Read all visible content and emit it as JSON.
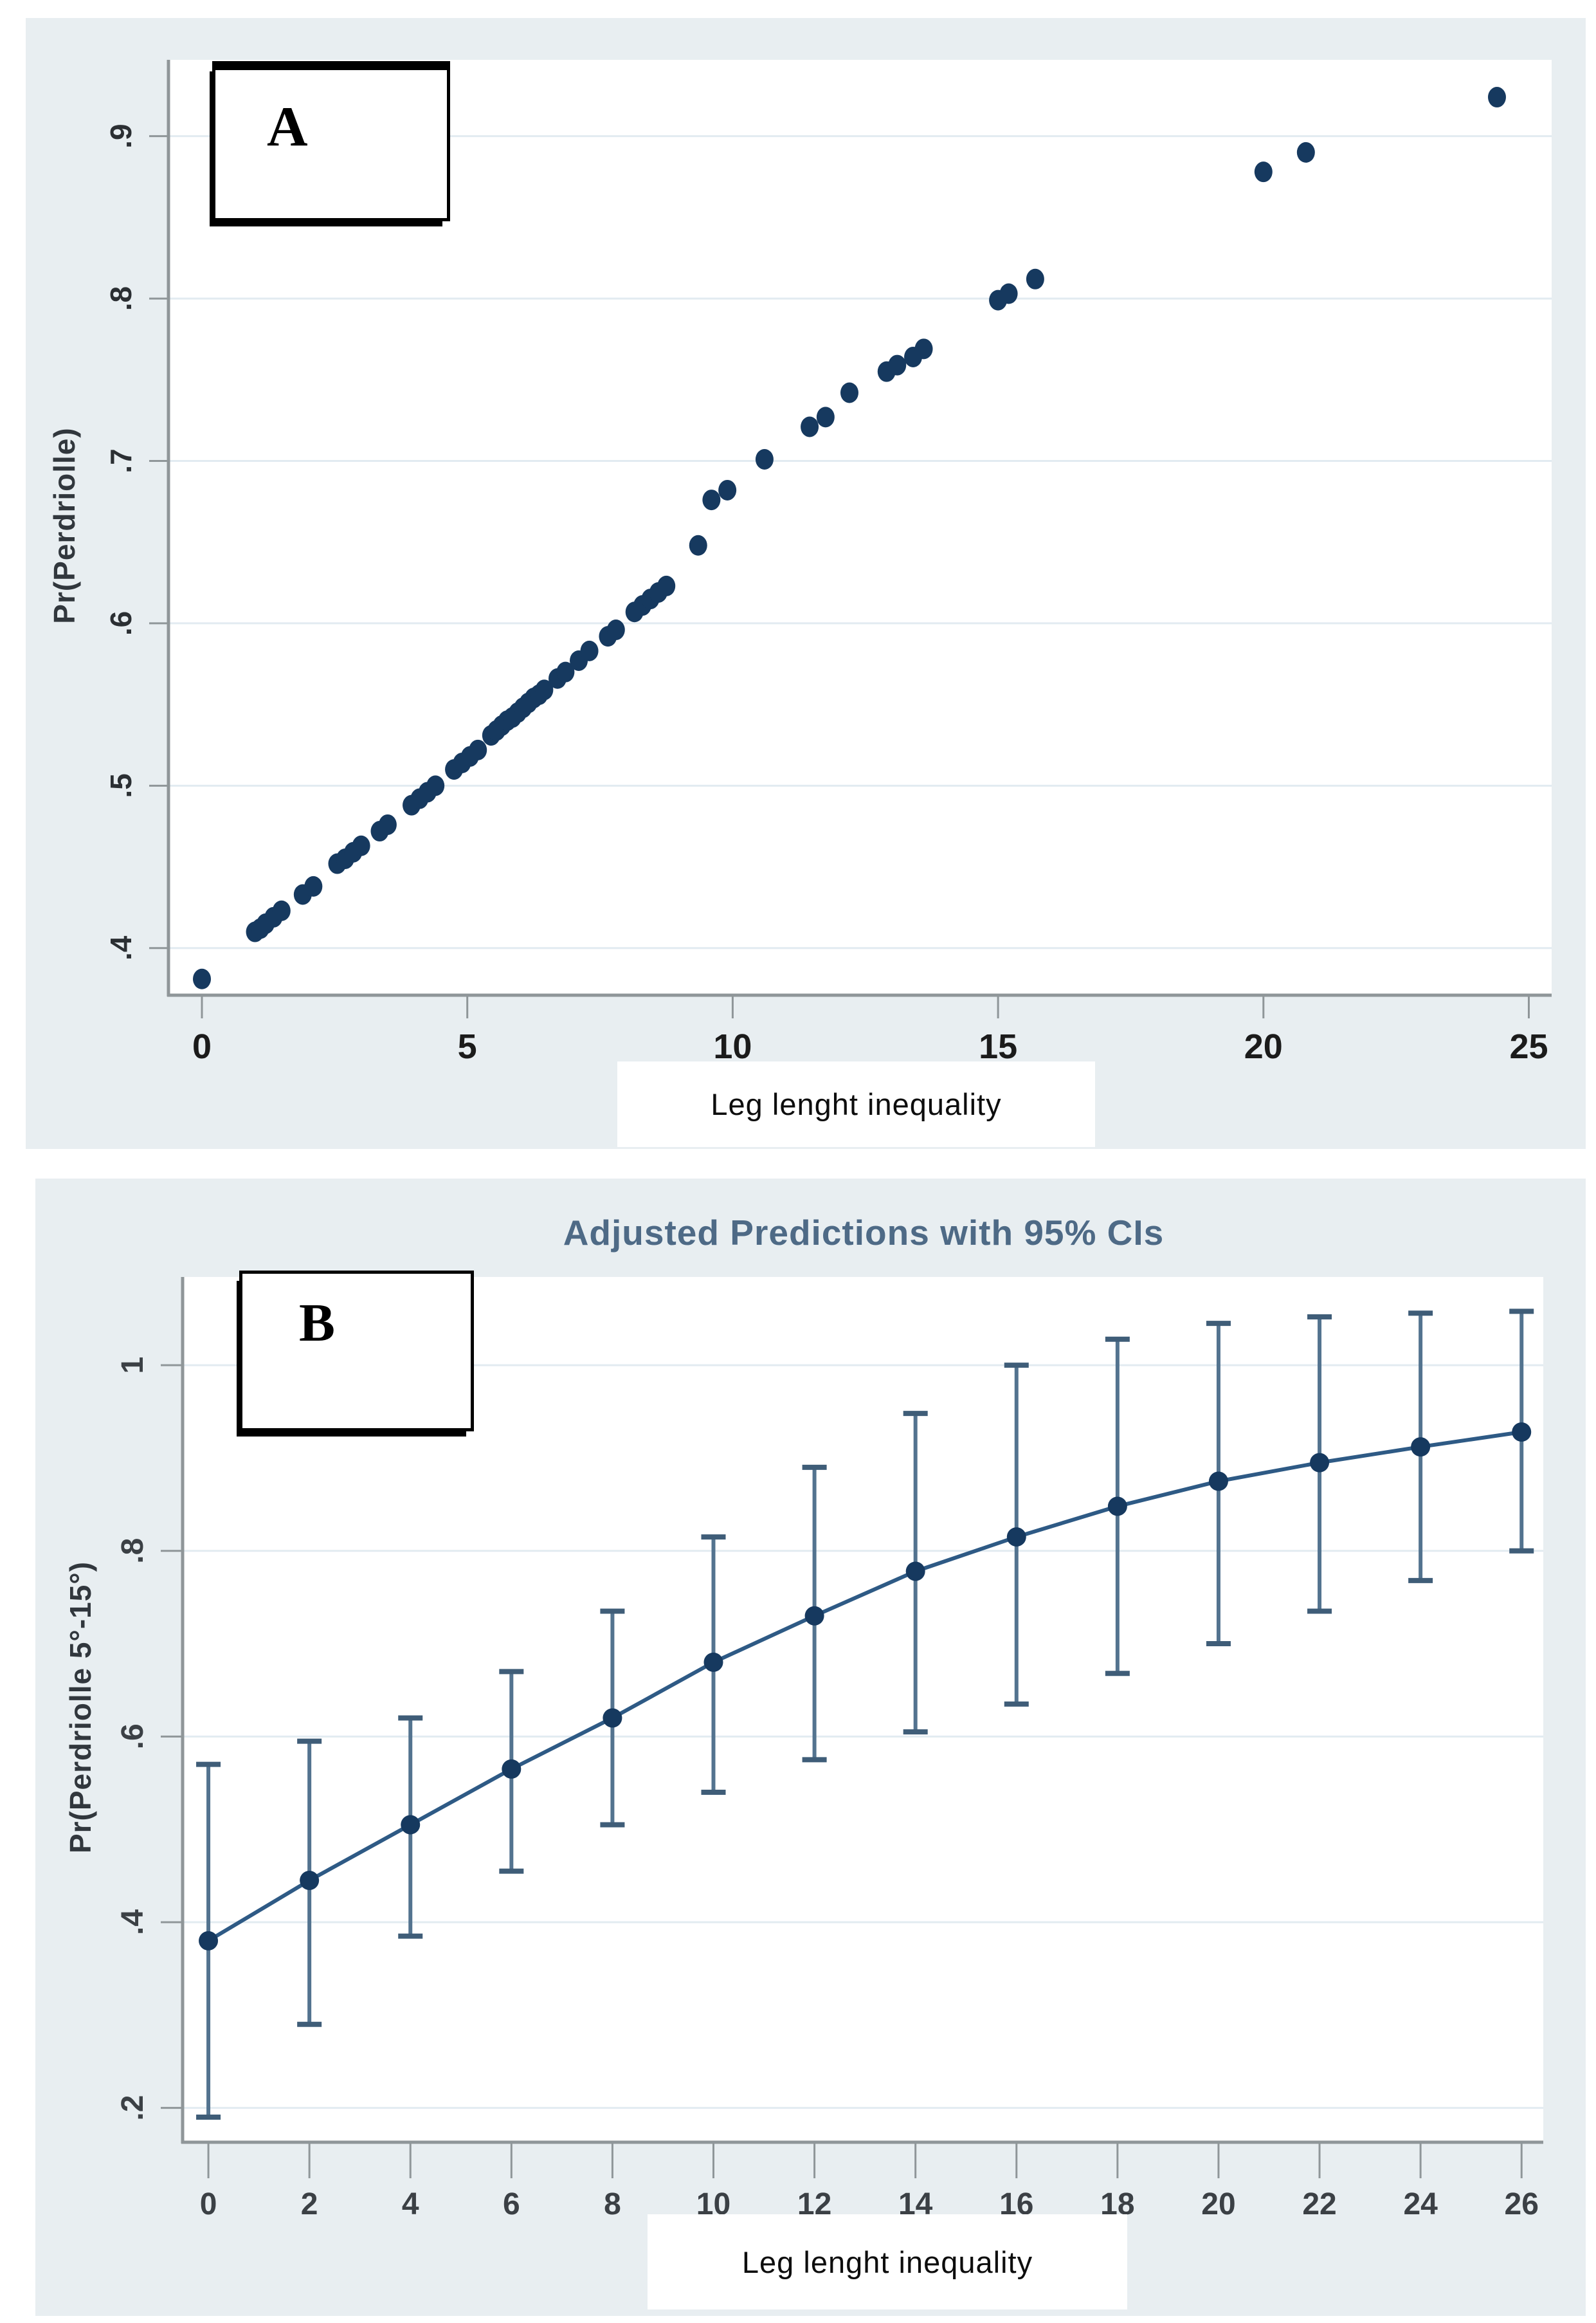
{
  "panel_a": {
    "label": "A",
    "y_axis_title": "Pr(Perdriolle)",
    "x_axis_title": "Leg lenght inequality"
  },
  "panel_b": {
    "label": "B",
    "title": "Adjusted Predictions with 95% CIs",
    "y_axis_title": "Pr(Perdriolle 5°-15°)",
    "x_axis_title": "Leg lenght inequality"
  },
  "colors": {
    "panel_bg": "#e8eef1",
    "plot_bg": "#ffffff",
    "grid": "#e2ebf1",
    "axis": "#8f9699",
    "tick": "#8f9699",
    "tick_text_a_x": "#1b1b1b",
    "tick_text_a_y": "#2b2f33",
    "tick_text_b": "#3b4045",
    "dot": "#16395f",
    "line": "#2e5a85",
    "errbar_stem": "#53738f",
    "errbar_cap": "#3f5d78",
    "title": "#4e6a86"
  },
  "chart_data": [
    {
      "type": "scatter",
      "title": "",
      "xlabel": "Leg lenght inequality",
      "ylabel": "Pr(Perdriolle)",
      "xlim": [
        -0.63,
        25.43
      ],
      "ylim": [
        0.371,
        0.947
      ],
      "xticks": [
        0,
        5,
        10,
        15,
        20,
        25
      ],
      "xtick_labels": [
        "0",
        "5",
        "10",
        "15",
        "20",
        "25"
      ],
      "yticks": [
        0.4,
        0.5,
        0.6,
        0.7,
        0.8,
        0.9
      ],
      "ytick_labels": [
        ".4",
        ".5",
        ".6",
        ".7",
        ".8",
        ".9"
      ],
      "grid": "horizontal",
      "legend": "none",
      "points": [
        [
          0,
          0.381
        ],
        [
          1.0,
          0.41
        ],
        [
          1.1,
          0.412
        ],
        [
          1.2,
          0.415
        ],
        [
          1.35,
          0.419
        ],
        [
          1.5,
          0.423
        ],
        [
          1.9,
          0.433
        ],
        [
          2.1,
          0.438
        ],
        [
          2.55,
          0.452
        ],
        [
          2.7,
          0.455
        ],
        [
          2.85,
          0.459
        ],
        [
          3.0,
          0.463
        ],
        [
          3.35,
          0.472
        ],
        [
          3.5,
          0.476
        ],
        [
          3.95,
          0.488
        ],
        [
          4.1,
          0.492
        ],
        [
          4.25,
          0.496
        ],
        [
          4.4,
          0.5
        ],
        [
          4.75,
          0.51
        ],
        [
          4.9,
          0.514
        ],
        [
          5.05,
          0.518
        ],
        [
          5.2,
          0.522
        ],
        [
          5.45,
          0.531
        ],
        [
          5.55,
          0.534
        ],
        [
          5.65,
          0.537
        ],
        [
          5.75,
          0.54
        ],
        [
          5.85,
          0.542
        ],
        [
          5.95,
          0.545
        ],
        [
          6.05,
          0.548
        ],
        [
          6.15,
          0.551
        ],
        [
          6.25,
          0.554
        ],
        [
          6.35,
          0.556
        ],
        [
          6.45,
          0.559
        ],
        [
          6.7,
          0.566
        ],
        [
          6.85,
          0.57
        ],
        [
          7.1,
          0.577
        ],
        [
          7.3,
          0.583
        ],
        [
          7.65,
          0.592
        ],
        [
          7.8,
          0.596
        ],
        [
          8.15,
          0.607
        ],
        [
          8.3,
          0.611
        ],
        [
          8.45,
          0.615
        ],
        [
          8.6,
          0.619
        ],
        [
          8.75,
          0.623
        ],
        [
          9.35,
          0.648
        ],
        [
          9.6,
          0.676
        ],
        [
          9.9,
          0.682
        ],
        [
          10.6,
          0.701
        ],
        [
          11.45,
          0.721
        ],
        [
          11.75,
          0.727
        ],
        [
          12.2,
          0.742
        ],
        [
          12.9,
          0.755
        ],
        [
          13.1,
          0.759
        ],
        [
          13.4,
          0.764
        ],
        [
          13.6,
          0.769
        ],
        [
          15.0,
          0.799
        ],
        [
          15.2,
          0.803
        ],
        [
          15.7,
          0.812
        ],
        [
          20.0,
          0.878
        ],
        [
          20.8,
          0.89
        ],
        [
          24.4,
          0.924
        ]
      ]
    },
    {
      "type": "line",
      "title": "Adjusted Predictions with 95% CIs",
      "xlabel": "Leg lenght inequality",
      "ylabel": "Pr(Perdriolle 5°-15°)",
      "xlim": [
        -0.51,
        26.43
      ],
      "ylim": [
        0.163,
        1.095
      ],
      "xticks": [
        0,
        2,
        4,
        6,
        8,
        10,
        12,
        14,
        16,
        18,
        20,
        22,
        24,
        26
      ],
      "xtick_labels": [
        "0",
        "2",
        "4",
        "6",
        "8",
        "10",
        "12",
        "14",
        "16",
        "18",
        "20",
        "22",
        "24",
        "26"
      ],
      "yticks": [
        0.2,
        0.4,
        0.6,
        0.8,
        1.0
      ],
      "ytick_labels": [
        ".2",
        ".4",
        ".6",
        ".8",
        "1"
      ],
      "grid": "horizontal",
      "legend": "none",
      "x": [
        0,
        2,
        4,
        6,
        8,
        10,
        12,
        14,
        16,
        18,
        20,
        22,
        24,
        26
      ],
      "y": [
        0.38,
        0.445,
        0.505,
        0.565,
        0.62,
        0.68,
        0.73,
        0.778,
        0.815,
        0.848,
        0.875,
        0.895,
        0.912,
        0.928
      ],
      "ci_low": [
        0.19,
        0.29,
        0.385,
        0.455,
        0.505,
        0.54,
        0.575,
        0.605,
        0.635,
        0.668,
        0.7,
        0.735,
        0.768,
        0.8
      ],
      "ci_high": [
        0.57,
        0.595,
        0.62,
        0.67,
        0.735,
        0.815,
        0.89,
        0.948,
        1.0,
        1.028,
        1.045,
        1.052,
        1.056,
        1.058
      ]
    }
  ]
}
